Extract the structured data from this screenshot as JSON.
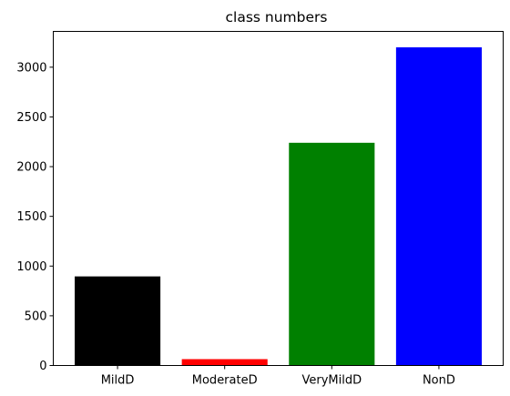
{
  "chart_data": {
    "type": "bar",
    "title": "class numbers",
    "xlabel": "",
    "ylabel": "",
    "categories": [
      "MildD",
      "ModerateD",
      "VeryMildD",
      "NonD"
    ],
    "values": [
      896,
      64,
      2240,
      3200
    ],
    "colors": [
      "#000000",
      "#ff0000",
      "#008000",
      "#0000ff"
    ],
    "ylim": [
      0,
      3360
    ],
    "yticks": [
      0,
      500,
      1000,
      1500,
      2000,
      2500,
      3000
    ],
    "ytick_labels": [
      "0",
      "500",
      "1000",
      "1500",
      "2000",
      "2500",
      "3000"
    ],
    "grid": false,
    "legend": "none"
  }
}
